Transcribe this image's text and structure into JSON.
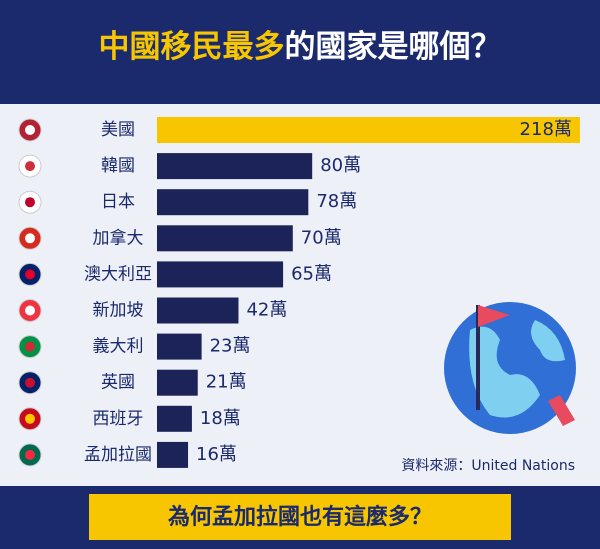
{
  "chart_data": {
    "type": "bar",
    "title_highlight": "中國移民最多",
    "title_rest": "的國家是哪個？",
    "categories": [
      "美國",
      "韓國",
      "日本",
      "加拿大",
      "澳大利亞",
      "新加坡",
      "義大利",
      "英國",
      "西班牙",
      "孟加拉國"
    ],
    "values": [
      218,
      80,
      78,
      70,
      65,
      42,
      23,
      21,
      18,
      16
    ],
    "value_labels": [
      "218萬",
      "80萬",
      "78萬",
      "70萬",
      "65萬",
      "42萬",
      "23萬",
      "21萬",
      "18萬",
      "16萬"
    ],
    "colors": [
      "#f7c600",
      "#1b2359",
      "#1b2359",
      "#1b2359",
      "#1b2359",
      "#1b2359",
      "#1b2359",
      "#1b2359",
      "#1b2359",
      "#1b2359"
    ],
    "source": "資料來源：United Nations",
    "footer": "為何孟加拉國也有這麼多？"
  }
}
